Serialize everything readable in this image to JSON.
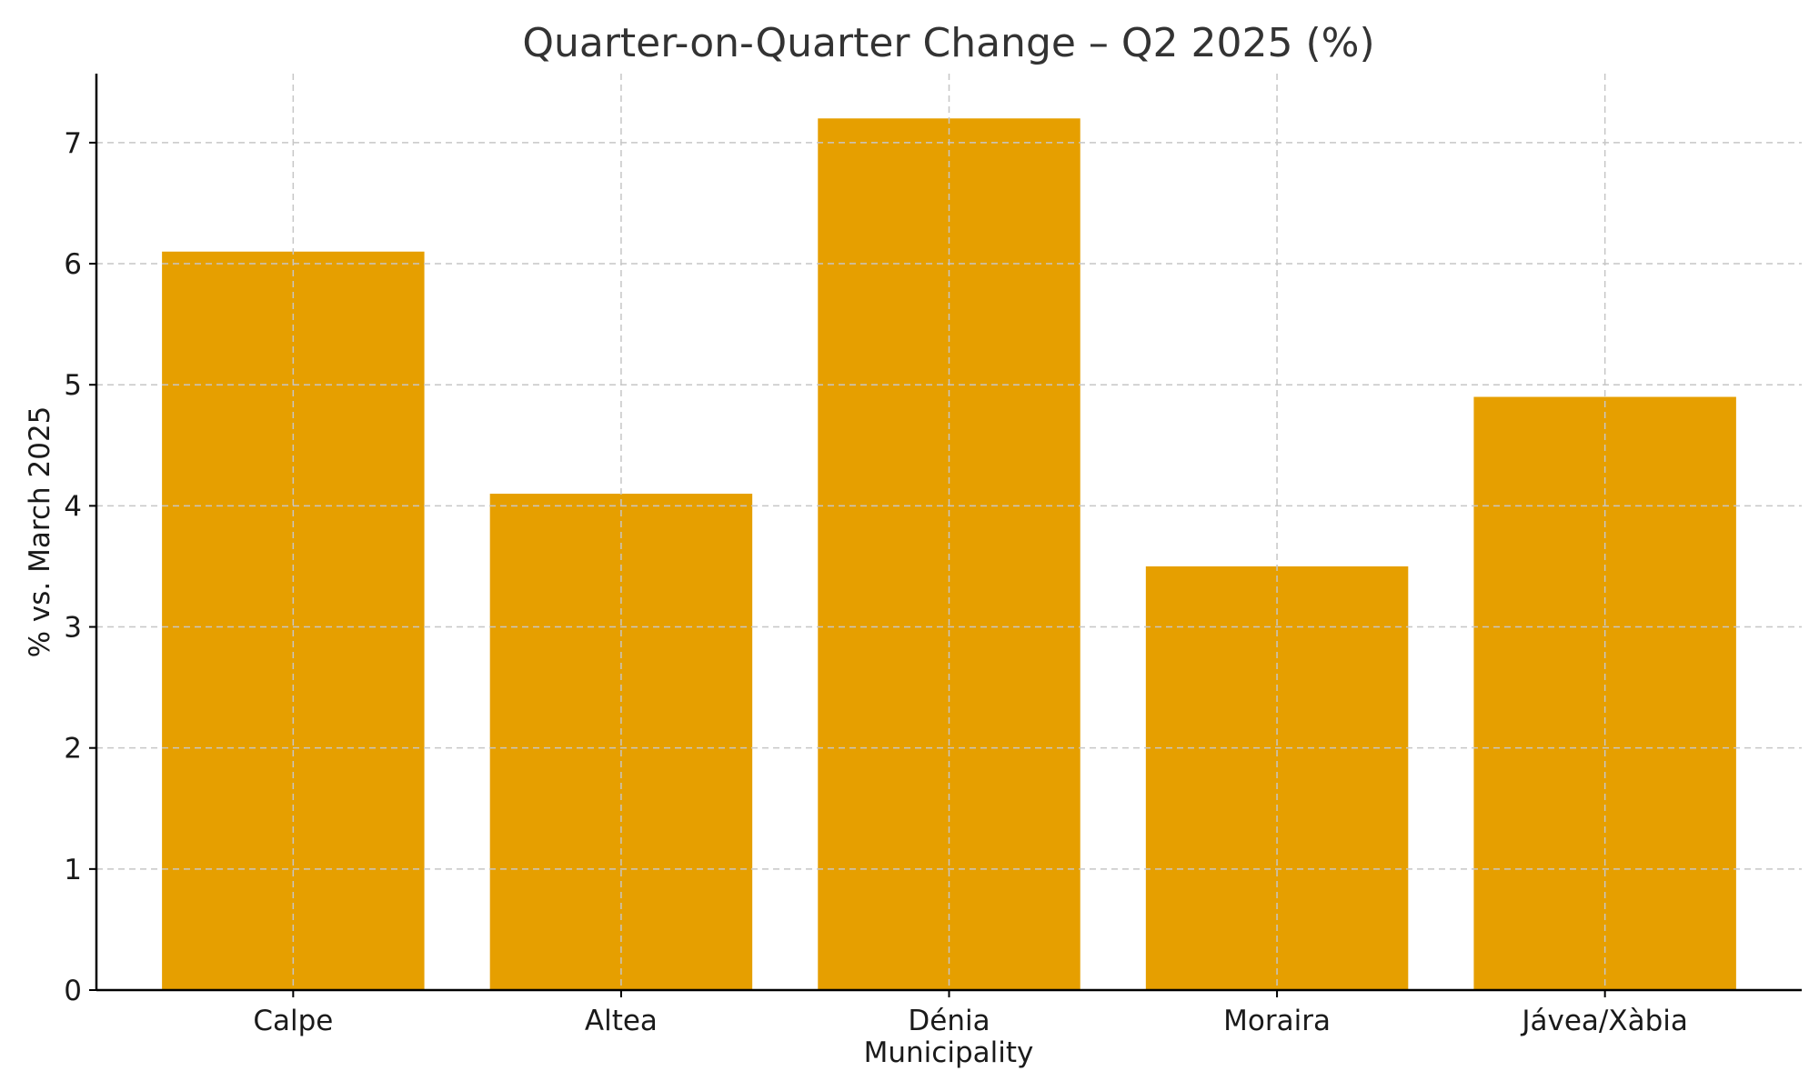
{
  "chart_data": {
    "type": "bar",
    "title": "Quarter-on-Quarter Change – Q2 2025 (%)",
    "xlabel": "Municipality",
    "ylabel": "% vs. March 2025",
    "categories": [
      "Calpe",
      "Altea",
      "Dénia",
      "Moraira",
      "Jávea/Xàbia"
    ],
    "values": [
      6.1,
      4.1,
      7.2,
      3.5,
      4.9
    ],
    "ylim": [
      0,
      7.57
    ],
    "yticks": [
      "0",
      "1",
      "2",
      "3",
      "4",
      "5",
      "6",
      "7"
    ],
    "grid": true,
    "bar_color": "#E69F00"
  }
}
